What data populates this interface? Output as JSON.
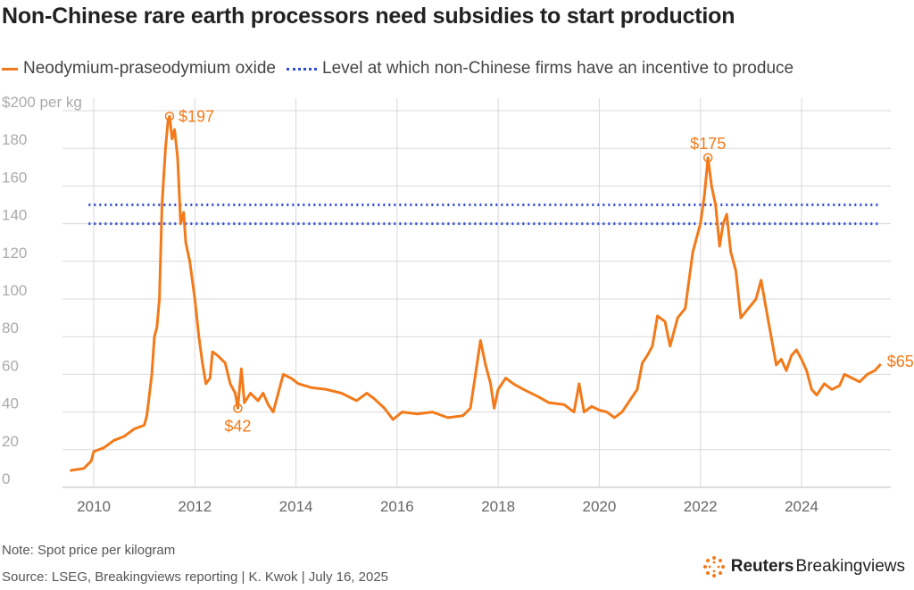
{
  "header": {
    "title": "Non-Chinese rare earth processors need subsidies to start production"
  },
  "legend": {
    "series_label": "Neodymium-praseodymium oxide",
    "threshold_label": "Level at which non-Chinese firms have an incentive to produce"
  },
  "colors": {
    "series": "#f27a1a",
    "threshold": "#2e4bd6",
    "grid": "#d9d9d9",
    "tick": "#aaaaaa"
  },
  "footer": {
    "note": "Note: Spot price per kilogram",
    "source": "Source: LSEG, Breakingviews reporting | K. Kwok | July 16, 2025",
    "brand_bold": "Reuters",
    "brand_regular": "Breakingviews"
  },
  "chart_data": {
    "type": "line",
    "title": "Non-Chinese rare earth processors need subsidies to start production",
    "xlabel": "",
    "ylabel": "$ per kg",
    "xlim": [
      2009.2,
      2025.75
    ],
    "ylim": [
      0,
      200
    ],
    "x_ticks": [
      2010,
      2012,
      2014,
      2016,
      2018,
      2020,
      2022,
      2024
    ],
    "x_tick_labels": [
      "2010",
      "2012",
      "2014",
      "2016",
      "2018",
      "2020",
      "2022",
      "2024"
    ],
    "y_ticks": [
      0,
      20,
      40,
      60,
      80,
      100,
      120,
      140,
      160,
      180,
      200
    ],
    "y_tick_labels": [
      "0",
      "20",
      "40",
      "60",
      "80",
      "100",
      "120",
      "140",
      "160",
      "180",
      "$200 per kg"
    ],
    "series": [
      {
        "name": "Neodymium-praseodymium oxide",
        "points": [
          [
            2009.55,
            9
          ],
          [
            2009.8,
            10
          ],
          [
            2009.95,
            14
          ],
          [
            2010.0,
            19
          ],
          [
            2010.2,
            21
          ],
          [
            2010.4,
            25
          ],
          [
            2010.6,
            27
          ],
          [
            2010.8,
            31
          ],
          [
            2011.0,
            33
          ],
          [
            2011.05,
            38
          ],
          [
            2011.15,
            60
          ],
          [
            2011.2,
            80
          ],
          [
            2011.25,
            85
          ],
          [
            2011.3,
            100
          ],
          [
            2011.35,
            150
          ],
          [
            2011.42,
            180
          ],
          [
            2011.47,
            195
          ],
          [
            2011.5,
            197
          ],
          [
            2011.55,
            185
          ],
          [
            2011.6,
            190
          ],
          [
            2011.66,
            175
          ],
          [
            2011.72,
            140
          ],
          [
            2011.78,
            146
          ],
          [
            2011.82,
            130
          ],
          [
            2011.9,
            120
          ],
          [
            2012.0,
            100
          ],
          [
            2012.08,
            80
          ],
          [
            2012.15,
            66
          ],
          [
            2012.22,
            55
          ],
          [
            2012.3,
            58
          ],
          [
            2012.35,
            72
          ],
          [
            2012.45,
            70
          ],
          [
            2012.6,
            66
          ],
          [
            2012.7,
            55
          ],
          [
            2012.8,
            50
          ],
          [
            2012.85,
            42
          ],
          [
            2012.92,
            63
          ],
          [
            2012.98,
            45
          ],
          [
            2013.1,
            50
          ],
          [
            2013.25,
            46
          ],
          [
            2013.35,
            50
          ],
          [
            2013.45,
            44
          ],
          [
            2013.55,
            40
          ],
          [
            2013.65,
            50
          ],
          [
            2013.75,
            60
          ],
          [
            2013.9,
            58
          ],
          [
            2014.05,
            55
          ],
          [
            2014.3,
            53
          ],
          [
            2014.6,
            52
          ],
          [
            2014.9,
            50
          ],
          [
            2015.2,
            46
          ],
          [
            2015.4,
            50
          ],
          [
            2015.55,
            47
          ],
          [
            2015.75,
            42
          ],
          [
            2015.92,
            36
          ],
          [
            2016.1,
            40
          ],
          [
            2016.4,
            39
          ],
          [
            2016.7,
            40
          ],
          [
            2017.0,
            37
          ],
          [
            2017.3,
            38
          ],
          [
            2017.45,
            42
          ],
          [
            2017.55,
            60
          ],
          [
            2017.65,
            78
          ],
          [
            2017.75,
            65
          ],
          [
            2017.85,
            55
          ],
          [
            2017.92,
            42
          ],
          [
            2018.0,
            52
          ],
          [
            2018.15,
            58
          ],
          [
            2018.3,
            55
          ],
          [
            2018.5,
            52
          ],
          [
            2018.8,
            48
          ],
          [
            2019.0,
            45
          ],
          [
            2019.3,
            44
          ],
          [
            2019.5,
            40
          ],
          [
            2019.6,
            55
          ],
          [
            2019.7,
            40
          ],
          [
            2019.85,
            43
          ],
          [
            2020.0,
            41
          ],
          [
            2020.15,
            40
          ],
          [
            2020.3,
            37
          ],
          [
            2020.45,
            40
          ],
          [
            2020.6,
            46
          ],
          [
            2020.75,
            52
          ],
          [
            2020.85,
            66
          ],
          [
            2020.95,
            70
          ],
          [
            2021.05,
            75
          ],
          [
            2021.15,
            91
          ],
          [
            2021.3,
            88
          ],
          [
            2021.4,
            75
          ],
          [
            2021.55,
            90
          ],
          [
            2021.7,
            95
          ],
          [
            2021.85,
            125
          ],
          [
            2022.0,
            140
          ],
          [
            2022.08,
            155
          ],
          [
            2022.15,
            175
          ],
          [
            2022.22,
            160
          ],
          [
            2022.3,
            150
          ],
          [
            2022.38,
            128
          ],
          [
            2022.45,
            140
          ],
          [
            2022.52,
            145
          ],
          [
            2022.6,
            125
          ],
          [
            2022.7,
            115
          ],
          [
            2022.8,
            90
          ],
          [
            2022.95,
            95
          ],
          [
            2023.1,
            100
          ],
          [
            2023.2,
            110
          ],
          [
            2023.3,
            95
          ],
          [
            2023.4,
            80
          ],
          [
            2023.5,
            65
          ],
          [
            2023.6,
            68
          ],
          [
            2023.7,
            62
          ],
          [
            2023.8,
            70
          ],
          [
            2023.9,
            73
          ],
          [
            2024.0,
            68
          ],
          [
            2024.1,
            62
          ],
          [
            2024.2,
            52
          ],
          [
            2024.3,
            49
          ],
          [
            2024.45,
            55
          ],
          [
            2024.6,
            52
          ],
          [
            2024.75,
            54
          ],
          [
            2024.85,
            60
          ],
          [
            2025.0,
            58
          ],
          [
            2025.15,
            56
          ],
          [
            2025.3,
            60
          ],
          [
            2025.45,
            62
          ],
          [
            2025.55,
            65
          ]
        ]
      }
    ],
    "threshold_levels": [
      140,
      150
    ],
    "annotations": [
      {
        "label": "$197",
        "x": 2011.5,
        "y": 197,
        "marker": true
      },
      {
        "label": "$42",
        "x": 2012.85,
        "y": 42,
        "marker": true
      },
      {
        "label": "$175",
        "x": 2022.15,
        "y": 175,
        "marker": true
      },
      {
        "label": "$65",
        "x": 2025.55,
        "y": 65,
        "marker": false
      }
    ]
  }
}
